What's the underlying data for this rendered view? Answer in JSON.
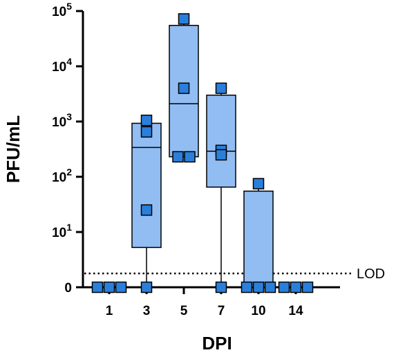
{
  "chart_data": {
    "type": "box",
    "xlabel": "DPI",
    "ylabel": "PFU/mL",
    "y_scale": "log",
    "y_ticks": [
      {
        "value": 0,
        "base": "0",
        "exp": ""
      },
      {
        "value": 10,
        "base": "10",
        "exp": "1"
      },
      {
        "value": 100,
        "base": "10",
        "exp": "2"
      },
      {
        "value": 1000,
        "base": "10",
        "exp": "3"
      },
      {
        "value": 10000,
        "base": "10",
        "exp": "4"
      },
      {
        "value": 100000,
        "base": "10",
        "exp": "5"
      }
    ],
    "lod": {
      "label": "LOD",
      "value": 2.5
    },
    "categories": [
      "1",
      "3",
      "5",
      "7",
      "10",
      "14"
    ],
    "groups": [
      {
        "dpi": "1",
        "min": 0,
        "q1": 0,
        "median": 0,
        "q3": 0,
        "max": 0,
        "points": [
          0,
          0,
          0
        ]
      },
      {
        "dpi": "3",
        "min": 0,
        "q1": 7.2,
        "median": 340,
        "q3": 930,
        "max": 1050,
        "points": [
          650,
          1050,
          25,
          0
        ]
      },
      {
        "dpi": "5",
        "min": 230,
        "q1": 230,
        "median": 2100,
        "q3": 55000,
        "max": 72000,
        "points": [
          72000,
          4000,
          230,
          230
        ]
      },
      {
        "dpi": "7",
        "min": 0,
        "q1": 65,
        "median": 290,
        "q3": 3000,
        "max": 4000,
        "points": [
          4000,
          300,
          250,
          0
        ]
      },
      {
        "dpi": "10",
        "min": 0,
        "q1": 0,
        "median": 0,
        "q3": 55,
        "max": 75,
        "points": [
          75,
          0,
          0,
          0
        ]
      },
      {
        "dpi": "14",
        "min": 0,
        "q1": 0,
        "median": 0,
        "q3": 0,
        "max": 0,
        "points": [
          0,
          0,
          0
        ]
      }
    ],
    "colors": {
      "box_fill": "#92bdf3",
      "marker": "#2a7fdb",
      "outline": "#000000"
    },
    "grid": false,
    "legend": "none"
  }
}
